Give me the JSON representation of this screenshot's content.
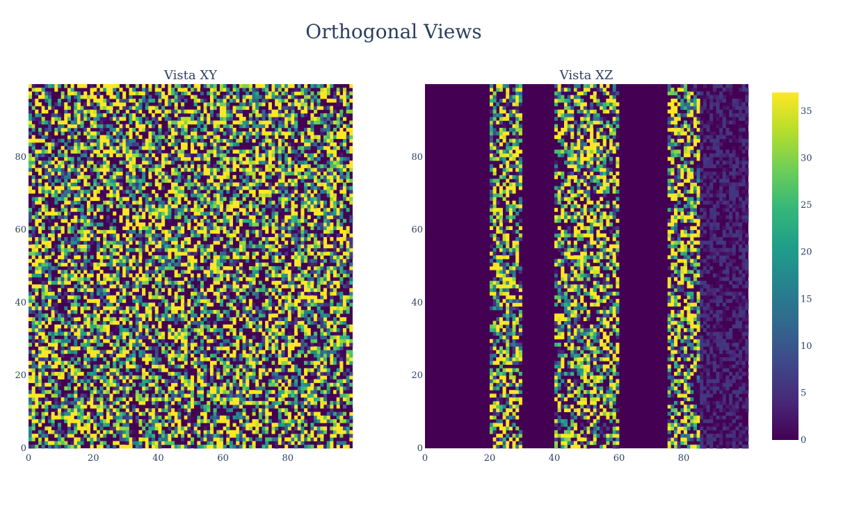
{
  "figure": {
    "title": "Orthogonal Views"
  },
  "colorscale": {
    "name": "Viridis",
    "stops": [
      "#440154",
      "#482878",
      "#3e4989",
      "#31688e",
      "#26828e",
      "#1f9e89",
      "#35b779",
      "#6ece58",
      "#b5de2b",
      "#fde725"
    ],
    "range": [
      0,
      37
    ],
    "ticks": [
      0,
      5,
      10,
      15,
      20,
      25,
      30,
      35
    ]
  },
  "chart_data": [
    {
      "type": "heatmap",
      "title": "Vista XY",
      "xlabel": "",
      "ylabel": "",
      "xlim": [
        0,
        99
      ],
      "ylim": [
        0,
        99
      ],
      "grid_size": [
        100,
        100
      ],
      "x_ticks": [
        0,
        20,
        40,
        60,
        80
      ],
      "y_ticks": [
        0,
        20,
        40,
        60,
        80
      ],
      "value_range": [
        0,
        37
      ],
      "pattern": "random"
    },
    {
      "type": "heatmap",
      "title": "Vista XZ",
      "xlabel": "",
      "ylabel": "",
      "xlim": [
        0,
        99
      ],
      "ylim": [
        0,
        99
      ],
      "grid_size": [
        100,
        100
      ],
      "x_ticks": [
        0,
        20,
        40,
        60,
        80
      ],
      "y_ticks": [
        0,
        20,
        40,
        60,
        80
      ],
      "value_range": [
        0,
        37
      ],
      "bands": [
        {
          "x_start": 20,
          "x_end": 29,
          "max": 37
        },
        {
          "x_start": 40,
          "x_end": 59,
          "max": 37
        },
        {
          "x_start": 75,
          "x_end": 84,
          "max": 37
        },
        {
          "x_start": 85,
          "x_end": 99,
          "max": 6
        }
      ]
    }
  ]
}
